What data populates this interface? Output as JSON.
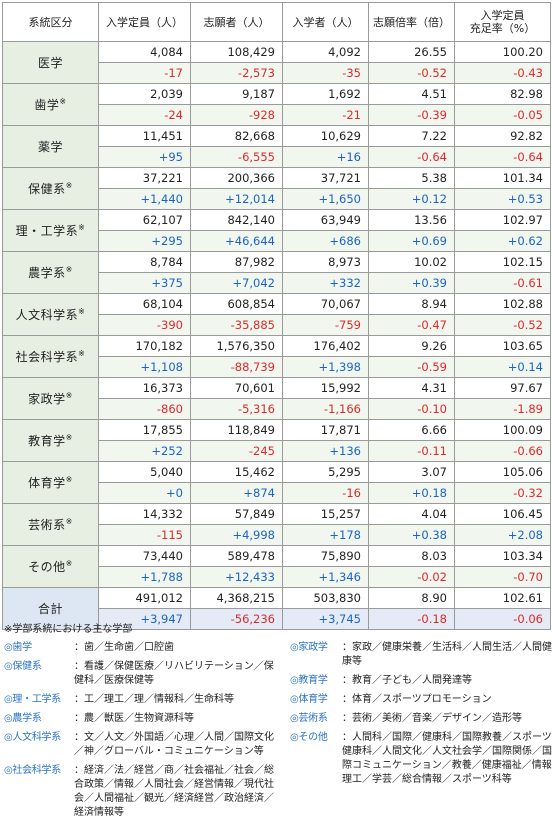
{
  "header": {
    "category": "系統区分",
    "capacity": "入学定員（人）",
    "applicants": "志願者（人）",
    "enrolled": "入学者（人）",
    "ratio": "志願倍率（倍）",
    "fill_line1": "入学定員",
    "fill_line2": "充足率（%）"
  },
  "rows": [
    {
      "name": "医学",
      "mark": "",
      "values": [
        "4,084",
        "108,429",
        "4,092",
        "26.55",
        "100.20"
      ],
      "changes": [
        "-17",
        "-2,573",
        "-35",
        "-0.52",
        "-0.43"
      ]
    },
    {
      "name": "歯学",
      "mark": "※",
      "values": [
        "2,039",
        "9,187",
        "1,692",
        "4.51",
        "82.98"
      ],
      "changes": [
        "-24",
        "-928",
        "-21",
        "-0.39",
        "-0.05"
      ]
    },
    {
      "name": "薬学",
      "mark": "",
      "values": [
        "11,451",
        "82,668",
        "10,629",
        "7.22",
        "92.82"
      ],
      "changes": [
        "+95",
        "-6,555",
        "+16",
        "-0.64",
        "-0.64"
      ]
    },
    {
      "name": "保健系",
      "mark": "※",
      "values": [
        "37,221",
        "200,366",
        "37,721",
        "5.38",
        "101.34"
      ],
      "changes": [
        "+1,440",
        "+12,014",
        "+1,650",
        "+0.12",
        "+0.53"
      ]
    },
    {
      "name": "理・工学系",
      "mark": "※",
      "values": [
        "62,107",
        "842,140",
        "63,949",
        "13.56",
        "102.97"
      ],
      "changes": [
        "+295",
        "+46,644",
        "+686",
        "+0.69",
        "+0.62"
      ]
    },
    {
      "name": "農学系",
      "mark": "※",
      "values": [
        "8,784",
        "87,982",
        "8,973",
        "10.02",
        "102.15"
      ],
      "changes": [
        "+375",
        "+7,042",
        "+332",
        "+0.39",
        "-0.61"
      ]
    },
    {
      "name": "人文科学系",
      "mark": "※",
      "values": [
        "68,104",
        "608,854",
        "70,067",
        "8.94",
        "102.88"
      ],
      "changes": [
        "-390",
        "-35,885",
        "-759",
        "-0.47",
        "-0.52"
      ]
    },
    {
      "name": "社会科学系",
      "mark": "※",
      "values": [
        "170,182",
        "1,576,350",
        "176,402",
        "9.26",
        "103.65"
      ],
      "changes": [
        "+1,108",
        "-88,739",
        "+1,398",
        "-0.59",
        "+0.14"
      ]
    },
    {
      "name": "家政学",
      "mark": "※",
      "values": [
        "16,373",
        "70,601",
        "15,992",
        "4.31",
        "97.67"
      ],
      "changes": [
        "-860",
        "-5,316",
        "-1,166",
        "-0.10",
        "-1.89"
      ]
    },
    {
      "name": "教育学",
      "mark": "※",
      "values": [
        "17,855",
        "118,849",
        "17,871",
        "6.66",
        "100.09"
      ],
      "changes": [
        "+252",
        "-245",
        "+136",
        "-0.11",
        "-0.66"
      ]
    },
    {
      "name": "体育学",
      "mark": "※",
      "values": [
        "5,040",
        "15,462",
        "5,295",
        "3.07",
        "105.06"
      ],
      "changes": [
        "+0",
        "+874",
        "-16",
        "+0.18",
        "-0.32"
      ]
    },
    {
      "name": "芸術系",
      "mark": "※",
      "values": [
        "14,332",
        "57,849",
        "15,257",
        "4.04",
        "106.45"
      ],
      "changes": [
        "-115",
        "+4,998",
        "+178",
        "+0.38",
        "+2.08"
      ]
    },
    {
      "name": "その他",
      "mark": "※",
      "values": [
        "73,440",
        "589,478",
        "75,890",
        "8.03",
        "103.34"
      ],
      "changes": [
        "+1,788",
        "+12,433",
        "+1,346",
        "-0.02",
        "-0.70"
      ]
    }
  ],
  "total": {
    "name": "合計",
    "values": [
      "491,012",
      "4,368,215",
      "503,830",
      "8.90",
      "102.61"
    ],
    "changes": [
      "+3,947",
      "-56,236",
      "+3,745",
      "-0.18",
      "-0.06"
    ]
  },
  "colors": {
    "positive": "#1a64c9",
    "negative": "#dd2a2a",
    "note_heading": "#2a73c6"
  },
  "notes": {
    "title": "※学部系統における主な学部",
    "left": [
      {
        "head": "◎歯学",
        "body": "：歯／生命歯／口腔歯"
      },
      {
        "head": "◎保健系",
        "body": "：看護／保健医療／リハビリテーション／保健科／医療保健等"
      },
      {
        "head": "◎理・工学系",
        "body": "：工／理工／理／情報科／生命科等"
      },
      {
        "head": "◎農学系",
        "body": "：農／獣医／生物資源科等"
      },
      {
        "head": "◎人文科学系",
        "body": "：文／人文／外国語／心理／人間／国際文化／神／グローバル・コミュニケーション等"
      },
      {
        "head": "◎社会科学系",
        "body": "：経済／法／経営／商／社会福祉／社会／総合政策／情報／人間社会／経営情報／現代社会／人間福祉／観光／経済経営／政治経済／経済情報等"
      }
    ],
    "right": [
      {
        "head": "◎家政学",
        "body": "：家政／健康栄養／生活科／人間生活／人間健康等"
      },
      {
        "head": "◎教育学",
        "body": "：教育／子ども／人間発達等"
      },
      {
        "head": "◎体育学",
        "body": "：体育／スポーツプロモーション"
      },
      {
        "head": "◎芸術系",
        "body": "：芸術／美術／音楽／デザイン／造形等"
      },
      {
        "head": "◎その他",
        "body": "：人間科／国際／健康科／国際教養／スポーツ健康科／人間文化／人文社会学／国際関係／国際コミュニケーション／教養／健康福祉／情報理工／学芸／総合情報／スポーツ科等"
      }
    ]
  }
}
